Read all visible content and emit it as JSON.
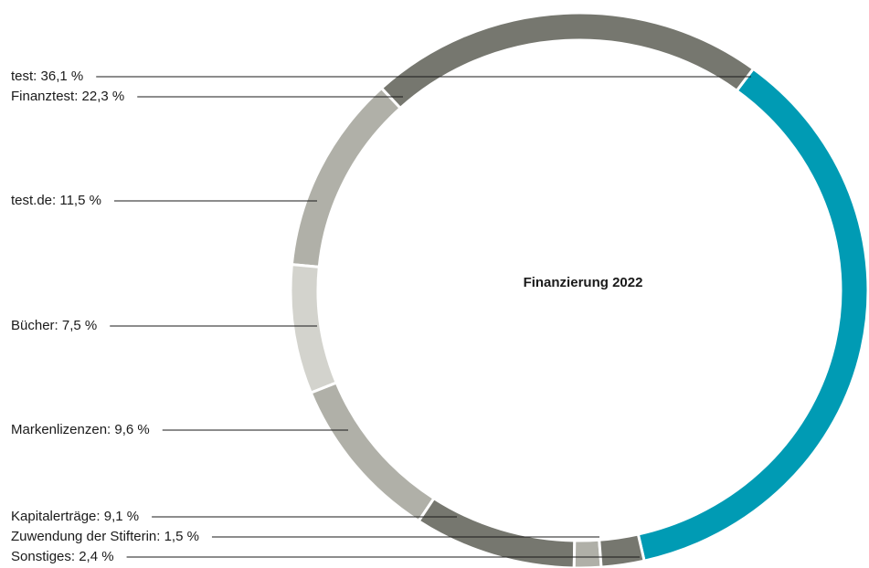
{
  "chart_data": {
    "type": "donut",
    "title": "Finanzierung 2022",
    "values": [
      36.1,
      22.3,
      11.5,
      7.5,
      9.6,
      9.1,
      1.5,
      2.4
    ],
    "value_labels": [
      "test: 36,1 %",
      "Finanztest: 22,3 %",
      "test.de: 11,5 %",
      "Bücher: 7,5 %",
      "Markenlizenzen: 9,6 %",
      "Kapitalerträge: 9,1 %",
      "Zuwendung der Stifterin: 1,5 %",
      "Sonstiges: 2,4 %"
    ],
    "colors": [
      "#009bb4",
      "#76776f",
      "#b0b0a8",
      "#d3d3cd",
      "#b0b0a8",
      "#76776f",
      "#b0b0a8",
      "#76776f"
    ]
  }
}
